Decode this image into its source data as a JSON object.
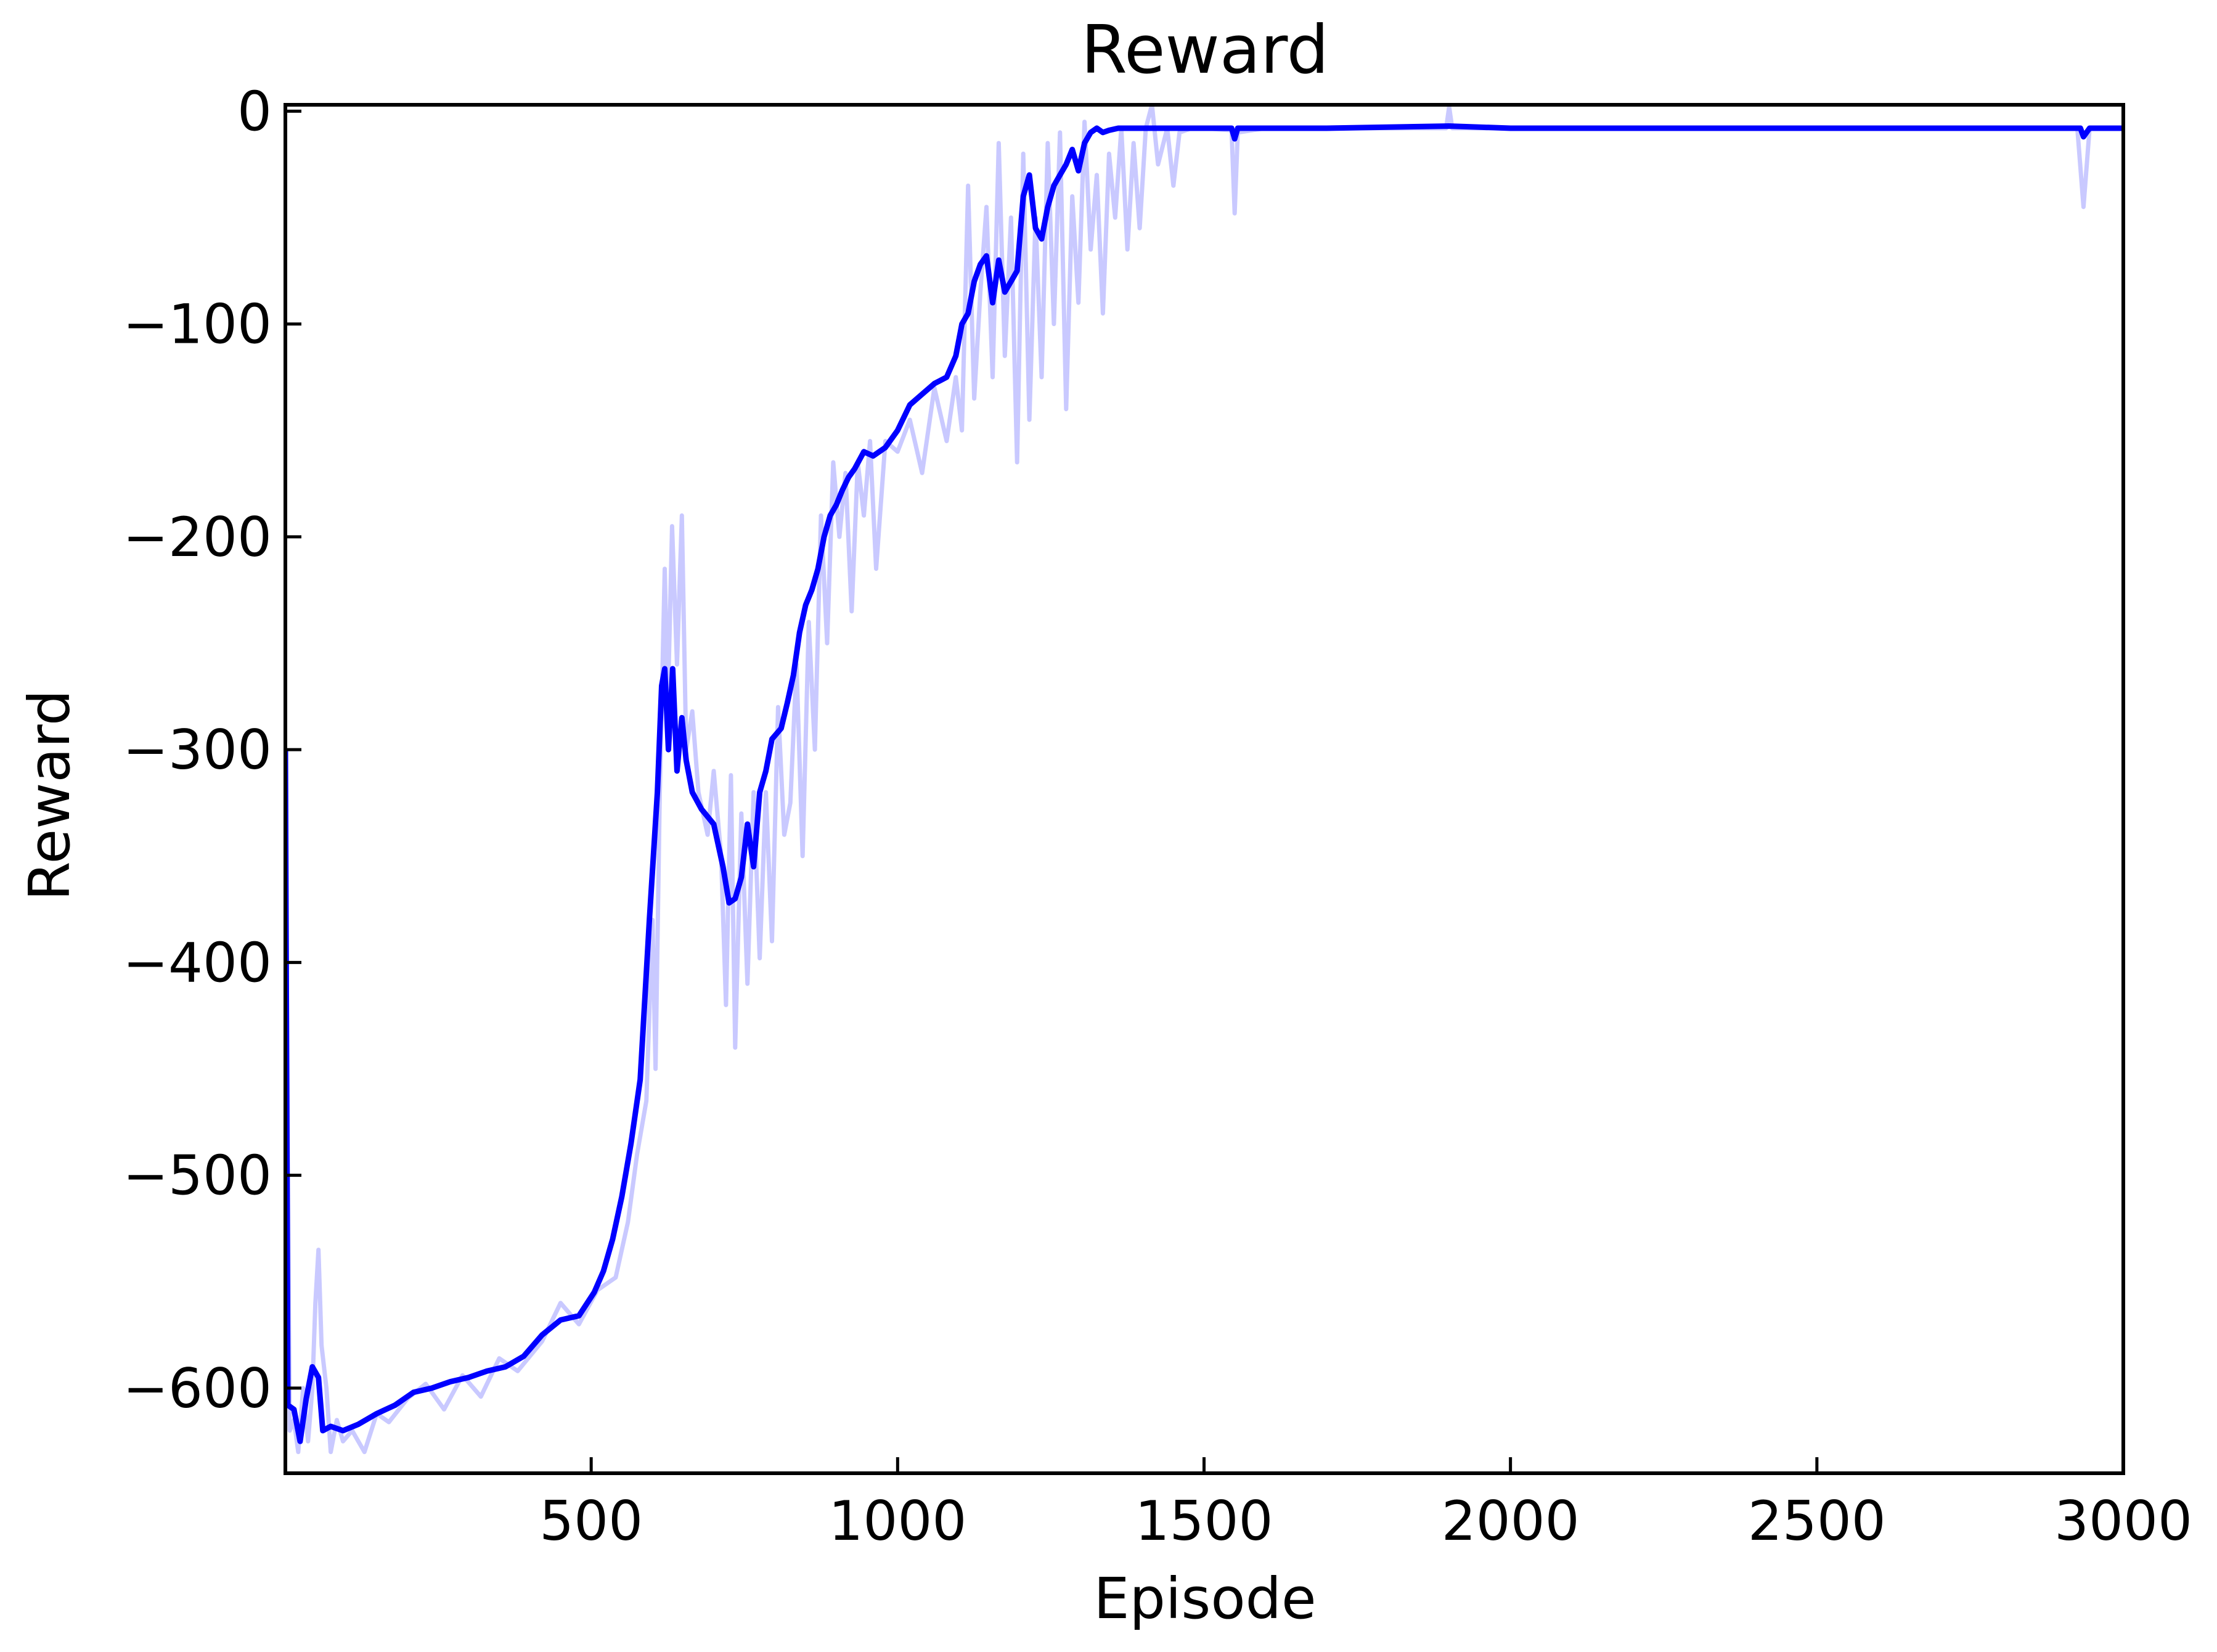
{
  "chart_data": {
    "type": "line",
    "title": "Reward",
    "xlabel": "Episode",
    "ylabel": "Reward",
    "xlim": [
      1,
      3000
    ],
    "ylim": [
      -640,
      3
    ],
    "x_ticks": [
      500,
      1000,
      1500,
      2000,
      2500,
      3000
    ],
    "y_ticks": [
      0,
      -100,
      -200,
      -300,
      -400,
      -500,
      -600
    ],
    "grid": false,
    "legend": "none",
    "colors": {
      "raw": "#c9c9ff",
      "smoothed": "#0000ff",
      "axes": "#000000"
    },
    "series": [
      {
        "role": "raw",
        "points": [
          [
            1,
            -300
          ],
          [
            8,
            -620
          ],
          [
            15,
            -615
          ],
          [
            22,
            -630
          ],
          [
            30,
            -600
          ],
          [
            38,
            -625
          ],
          [
            45,
            -600
          ],
          [
            50,
            -560
          ],
          [
            55,
            -535
          ],
          [
            60,
            -580
          ],
          [
            68,
            -600
          ],
          [
            75,
            -630
          ],
          [
            85,
            -615
          ],
          [
            95,
            -625
          ],
          [
            110,
            -620
          ],
          [
            130,
            -630
          ],
          [
            150,
            -612
          ],
          [
            170,
            -616
          ],
          [
            200,
            -605
          ],
          [
            230,
            -598
          ],
          [
            260,
            -610
          ],
          [
            290,
            -594
          ],
          [
            320,
            -604
          ],
          [
            350,
            -586
          ],
          [
            380,
            -592
          ],
          [
            420,
            -578
          ],
          [
            450,
            -560
          ],
          [
            480,
            -570
          ],
          [
            510,
            -554
          ],
          [
            540,
            -548
          ],
          [
            560,
            -522
          ],
          [
            575,
            -490
          ],
          [
            590,
            -465
          ],
          [
            600,
            -380
          ],
          [
            605,
            -450
          ],
          [
            612,
            -320
          ],
          [
            620,
            -215
          ],
          [
            625,
            -280
          ],
          [
            632,
            -195
          ],
          [
            640,
            -260
          ],
          [
            648,
            -190
          ],
          [
            655,
            -300
          ],
          [
            665,
            -282
          ],
          [
            675,
            -320
          ],
          [
            690,
            -340
          ],
          [
            700,
            -310
          ],
          [
            712,
            -350
          ],
          [
            720,
            -420
          ],
          [
            728,
            -312
          ],
          [
            735,
            -440
          ],
          [
            745,
            -330
          ],
          [
            755,
            -410
          ],
          [
            765,
            -320
          ],
          [
            775,
            -398
          ],
          [
            785,
            -320
          ],
          [
            795,
            -390
          ],
          [
            805,
            -280
          ],
          [
            815,
            -340
          ],
          [
            825,
            -325
          ],
          [
            835,
            -260
          ],
          [
            845,
            -350
          ],
          [
            855,
            -240
          ],
          [
            865,
            -300
          ],
          [
            875,
            -190
          ],
          [
            885,
            -250
          ],
          [
            895,
            -165
          ],
          [
            905,
            -200
          ],
          [
            915,
            -170
          ],
          [
            925,
            -235
          ],
          [
            935,
            -165
          ],
          [
            945,
            -190
          ],
          [
            955,
            -155
          ],
          [
            965,
            -215
          ],
          [
            980,
            -155
          ],
          [
            1000,
            -160
          ],
          [
            1020,
            -145
          ],
          [
            1040,
            -170
          ],
          [
            1060,
            -130
          ],
          [
            1080,
            -155
          ],
          [
            1095,
            -125
          ],
          [
            1105,
            -150
          ],
          [
            1115,
            -35
          ],
          [
            1125,
            -135
          ],
          [
            1135,
            -85
          ],
          [
            1145,
            -45
          ],
          [
            1155,
            -125
          ],
          [
            1165,
            -15
          ],
          [
            1175,
            -115
          ],
          [
            1185,
            -50
          ],
          [
            1195,
            -165
          ],
          [
            1205,
            -20
          ],
          [
            1215,
            -145
          ],
          [
            1225,
            -50
          ],
          [
            1235,
            -125
          ],
          [
            1245,
            -15
          ],
          [
            1255,
            -100
          ],
          [
            1265,
            -10
          ],
          [
            1275,
            -140
          ],
          [
            1285,
            -40
          ],
          [
            1295,
            -90
          ],
          [
            1305,
            -5
          ],
          [
            1315,
            -65
          ],
          [
            1325,
            -30
          ],
          [
            1335,
            -95
          ],
          [
            1345,
            -20
          ],
          [
            1355,
            -50
          ],
          [
            1365,
            -8
          ],
          [
            1375,
            -65
          ],
          [
            1385,
            -15
          ],
          [
            1395,
            -55
          ],
          [
            1405,
            -8
          ],
          [
            1415,
            3
          ],
          [
            1425,
            -25
          ],
          [
            1440,
            -8
          ],
          [
            1450,
            -35
          ],
          [
            1460,
            -10
          ],
          [
            1480,
            -8
          ],
          [
            1500,
            -8
          ],
          [
            1545,
            -9
          ],
          [
            1550,
            -48
          ],
          [
            1555,
            -10
          ],
          [
            1600,
            -8
          ],
          [
            1700,
            -8
          ],
          [
            1800,
            -8
          ],
          [
            1895,
            -8
          ],
          [
            1900,
            2
          ],
          [
            1905,
            -8
          ],
          [
            2000,
            -8
          ],
          [
            2300,
            -8
          ],
          [
            2600,
            -8
          ],
          [
            2925,
            -8
          ],
          [
            2935,
            -45
          ],
          [
            2945,
            -8
          ],
          [
            3000,
            -8
          ]
        ]
      },
      {
        "role": "smoothed",
        "points": [
          [
            1,
            -300
          ],
          [
            5,
            -608
          ],
          [
            15,
            -610
          ],
          [
            25,
            -625
          ],
          [
            35,
            -605
          ],
          [
            45,
            -590
          ],
          [
            55,
            -595
          ],
          [
            62,
            -620
          ],
          [
            75,
            -618
          ],
          [
            95,
            -620
          ],
          [
            120,
            -617
          ],
          [
            150,
            -612
          ],
          [
            180,
            -608
          ],
          [
            210,
            -602
          ],
          [
            240,
            -600
          ],
          [
            270,
            -597
          ],
          [
            300,
            -595
          ],
          [
            330,
            -592
          ],
          [
            360,
            -590
          ],
          [
            390,
            -585
          ],
          [
            420,
            -575
          ],
          [
            450,
            -568
          ],
          [
            480,
            -566
          ],
          [
            505,
            -555
          ],
          [
            520,
            -545
          ],
          [
            535,
            -530
          ],
          [
            550,
            -510
          ],
          [
            565,
            -485
          ],
          [
            580,
            -455
          ],
          [
            595,
            -380
          ],
          [
            608,
            -320
          ],
          [
            615,
            -270
          ],
          [
            620,
            -262
          ],
          [
            626,
            -300
          ],
          [
            633,
            -262
          ],
          [
            640,
            -310
          ],
          [
            648,
            -285
          ],
          [
            655,
            -305
          ],
          [
            665,
            -320
          ],
          [
            680,
            -328
          ],
          [
            700,
            -335
          ],
          [
            715,
            -355
          ],
          [
            725,
            -372
          ],
          [
            735,
            -370
          ],
          [
            745,
            -360
          ],
          [
            755,
            -335
          ],
          [
            765,
            -355
          ],
          [
            775,
            -320
          ],
          [
            785,
            -310
          ],
          [
            795,
            -295
          ],
          [
            810,
            -290
          ],
          [
            820,
            -278
          ],
          [
            830,
            -265
          ],
          [
            840,
            -245
          ],
          [
            850,
            -232
          ],
          [
            860,
            -225
          ],
          [
            870,
            -215
          ],
          [
            880,
            -200
          ],
          [
            890,
            -190
          ],
          [
            900,
            -185
          ],
          [
            910,
            -178
          ],
          [
            920,
            -172
          ],
          [
            930,
            -168
          ],
          [
            945,
            -160
          ],
          [
            960,
            -162
          ],
          [
            980,
            -158
          ],
          [
            1000,
            -150
          ],
          [
            1020,
            -138
          ],
          [
            1040,
            -133
          ],
          [
            1060,
            -128
          ],
          [
            1080,
            -125
          ],
          [
            1095,
            -115
          ],
          [
            1105,
            -100
          ],
          [
            1115,
            -95
          ],
          [
            1125,
            -80
          ],
          [
            1135,
            -72
          ],
          [
            1145,
            -68
          ],
          [
            1155,
            -90
          ],
          [
            1165,
            -70
          ],
          [
            1175,
            -85
          ],
          [
            1185,
            -80
          ],
          [
            1195,
            -75
          ],
          [
            1205,
            -40
          ],
          [
            1215,
            -30
          ],
          [
            1225,
            -55
          ],
          [
            1235,
            -60
          ],
          [
            1245,
            -45
          ],
          [
            1255,
            -35
          ],
          [
            1265,
            -30
          ],
          [
            1275,
            -25
          ],
          [
            1285,
            -18
          ],
          [
            1295,
            -28
          ],
          [
            1305,
            -15
          ],
          [
            1315,
            -10
          ],
          [
            1325,
            -8
          ],
          [
            1335,
            -10
          ],
          [
            1345,
            -9
          ],
          [
            1360,
            -8
          ],
          [
            1400,
            -8
          ],
          [
            1450,
            -8
          ],
          [
            1500,
            -8
          ],
          [
            1545,
            -8
          ],
          [
            1550,
            -13
          ],
          [
            1555,
            -8
          ],
          [
            1700,
            -8
          ],
          [
            1900,
            -7
          ],
          [
            2000,
            -8
          ],
          [
            2500,
            -8
          ],
          [
            2930,
            -8
          ],
          [
            2935,
            -12
          ],
          [
            2945,
            -8
          ],
          [
            3000,
            -8
          ]
        ]
      }
    ]
  }
}
